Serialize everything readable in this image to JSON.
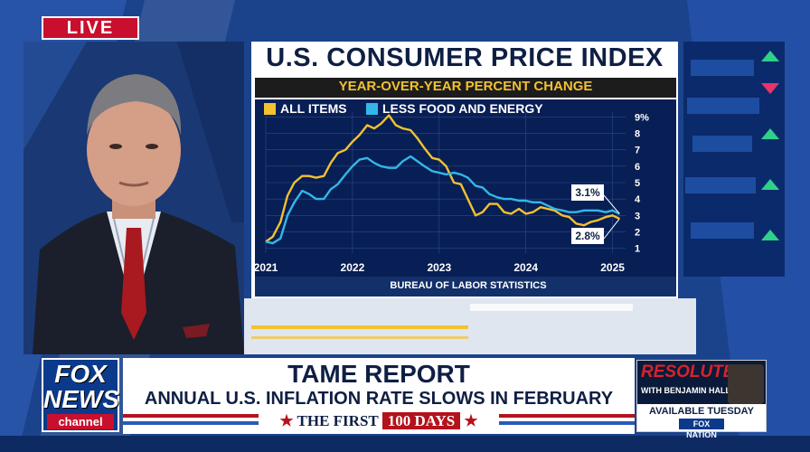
{
  "live_label": "LIVE",
  "chart_data": {
    "type": "line",
    "title": "U.S. CONSUMER PRICE INDEX",
    "subtitle": "YEAR-OVER-YEAR PERCENT CHANGE",
    "source": "BUREAU OF LABOR STATISTICS",
    "legend_position": "top-left",
    "grid": true,
    "x_ticks": [
      "2021",
      "2022",
      "2023",
      "2024",
      "2025"
    ],
    "y_ticks": [
      "1",
      "2",
      "3",
      "4",
      "5",
      "6",
      "7",
      "8",
      "9%"
    ],
    "xlim": [
      2021.0,
      2025.15
    ],
    "ylim": [
      0.7,
      9.3
    ],
    "series": [
      {
        "name": "ALL ITEMS",
        "color": "#f2c230",
        "x": [
          2021.0,
          2021.08,
          2021.17,
          2021.25,
          2021.33,
          2021.42,
          2021.5,
          2021.58,
          2021.67,
          2021.75,
          2021.83,
          2021.92,
          2022.0,
          2022.08,
          2022.17,
          2022.25,
          2022.33,
          2022.42,
          2022.5,
          2022.58,
          2022.67,
          2022.75,
          2022.83,
          2022.92,
          2023.0,
          2023.08,
          2023.17,
          2023.25,
          2023.33,
          2023.42,
          2023.5,
          2023.58,
          2023.67,
          2023.75,
          2023.83,
          2023.92,
          2024.0,
          2024.08,
          2024.17,
          2024.25,
          2024.33,
          2024.42,
          2024.5,
          2024.58,
          2024.67,
          2024.75,
          2024.83,
          2024.92,
          2025.0,
          2025.08
        ],
        "values": [
          1.4,
          1.7,
          2.6,
          4.2,
          5.0,
          5.4,
          5.4,
          5.3,
          5.4,
          6.2,
          6.8,
          7.0,
          7.5,
          7.9,
          8.5,
          8.3,
          8.6,
          9.1,
          8.5,
          8.3,
          8.2,
          7.7,
          7.1,
          6.5,
          6.4,
          6.0,
          5.0,
          4.9,
          4.0,
          3.0,
          3.2,
          3.7,
          3.7,
          3.2,
          3.1,
          3.4,
          3.1,
          3.2,
          3.5,
          3.4,
          3.3,
          3.0,
          2.9,
          2.5,
          2.4,
          2.6,
          2.7,
          2.9,
          3.0,
          2.8
        ]
      },
      {
        "name": "LESS FOOD AND ENERGY",
        "color": "#33b7e8",
        "x": [
          2021.0,
          2021.08,
          2021.17,
          2021.25,
          2021.33,
          2021.42,
          2021.5,
          2021.58,
          2021.67,
          2021.75,
          2021.83,
          2021.92,
          2022.0,
          2022.08,
          2022.17,
          2022.25,
          2022.33,
          2022.42,
          2022.5,
          2022.58,
          2022.67,
          2022.75,
          2022.83,
          2022.92,
          2023.0,
          2023.08,
          2023.17,
          2023.25,
          2023.33,
          2023.42,
          2023.5,
          2023.58,
          2023.67,
          2023.75,
          2023.83,
          2023.92,
          2024.0,
          2024.08,
          2024.17,
          2024.25,
          2024.33,
          2024.42,
          2024.5,
          2024.58,
          2024.67,
          2024.75,
          2024.83,
          2024.92,
          2025.0,
          2025.08
        ],
        "values": [
          1.4,
          1.3,
          1.6,
          3.0,
          3.8,
          4.5,
          4.3,
          4.0,
          4.0,
          4.6,
          4.9,
          5.5,
          6.0,
          6.4,
          6.5,
          6.2,
          6.0,
          5.9,
          5.9,
          6.3,
          6.6,
          6.3,
          6.0,
          5.7,
          5.6,
          5.5,
          5.6,
          5.5,
          5.3,
          4.8,
          4.7,
          4.3,
          4.1,
          4.0,
          4.0,
          3.9,
          3.9,
          3.8,
          3.8,
          3.6,
          3.4,
          3.3,
          3.2,
          3.2,
          3.3,
          3.3,
          3.3,
          3.2,
          3.3,
          3.1
        ]
      }
    ],
    "annotations": [
      {
        "text": "3.1%",
        "series": "LESS FOOD AND ENERGY",
        "x": 2025.08,
        "y": 3.1
      },
      {
        "text": "2.8%",
        "series": "ALL ITEMS",
        "x": 2025.08,
        "y": 2.8
      }
    ]
  },
  "lower_third": {
    "headline": "TAME REPORT",
    "subhead": "ANNUAL U.S. INFLATION RATE SLOWS IN FEBRUARY",
    "banner_star": "★",
    "banner_prefix": "THE FIRST",
    "banner_box": "100 DAYS",
    "banner_star_right": "★"
  },
  "logo": {
    "line1": "FOX",
    "line2": "NEWS",
    "line3": "channel"
  },
  "promo": {
    "title": "RESOLUTE",
    "subtitle": "WITH BENJAMIN HALL",
    "when": "AVAILABLE TUESDAY",
    "brand": "FOX NATION"
  },
  "colors": {
    "accent_red": "#c8102e",
    "navy": "#0f1f44",
    "plot_bg": "#081f55",
    "all_items": "#f2c230",
    "core": "#33b7e8"
  }
}
